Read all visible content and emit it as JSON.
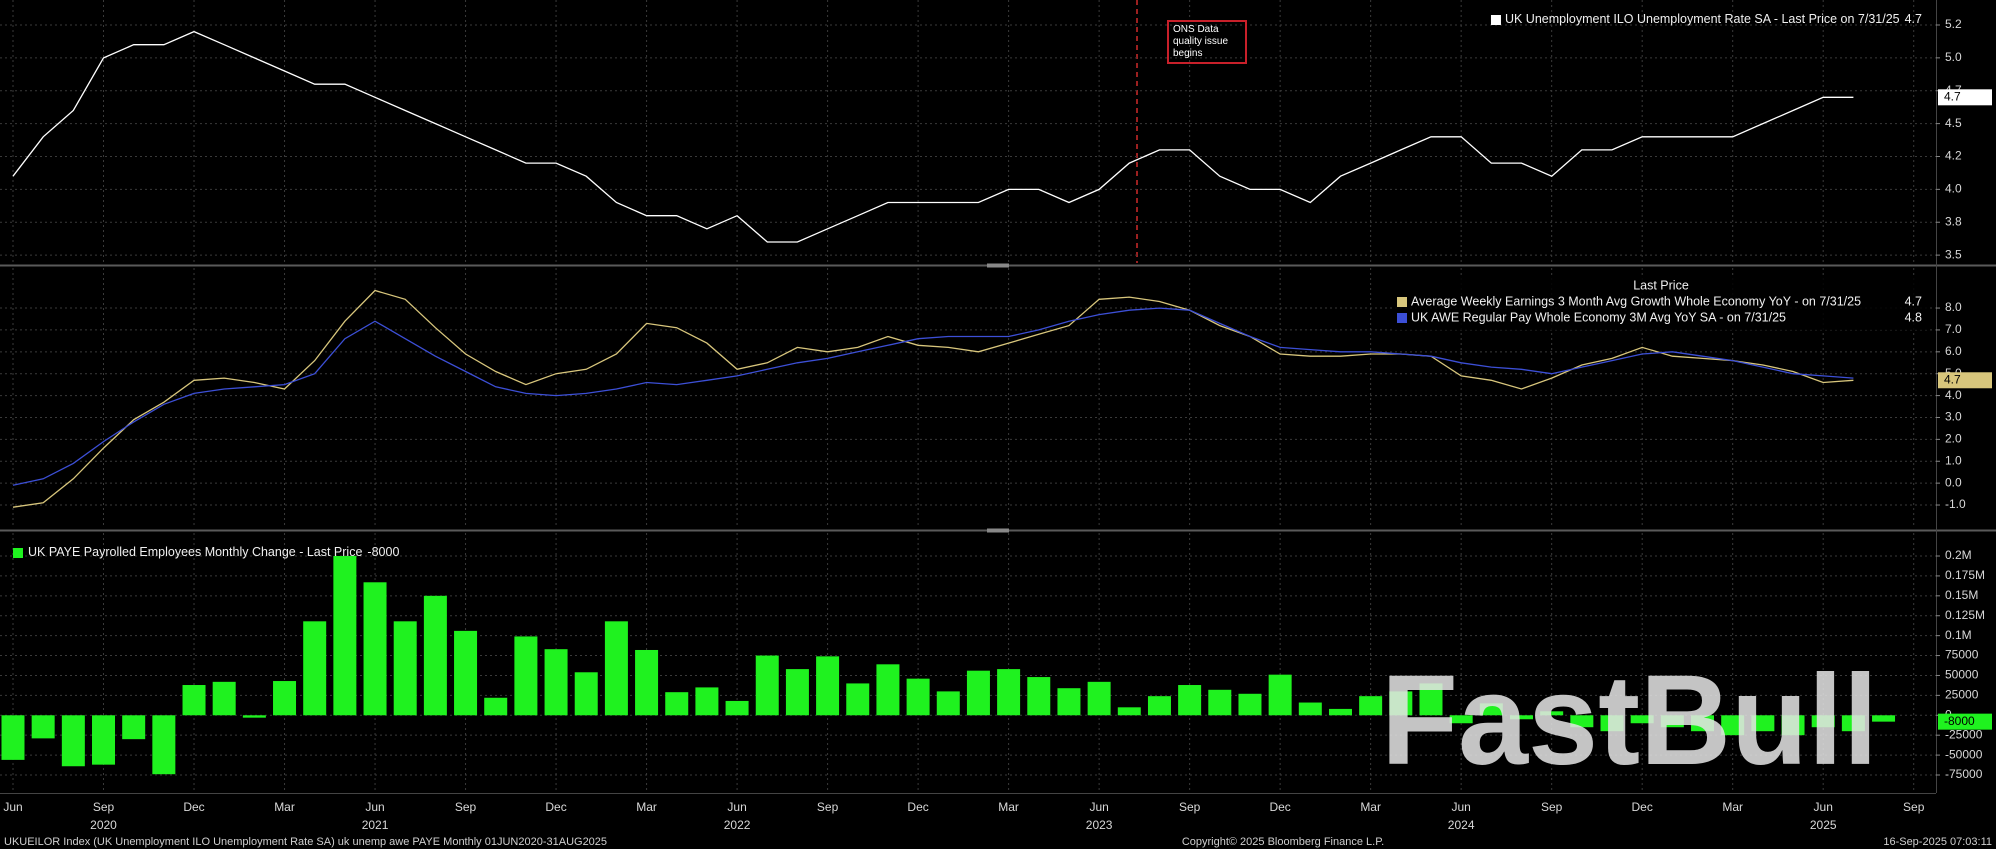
{
  "chart_data": [
    {
      "type": "line",
      "series": [
        {
          "name": "UK Unemployment ILO Unemployment Rate SA - Last Price on 7/31/25",
          "color": "#ffffff",
          "last_value_tag": true,
          "values": [
            4.1,
            4.4,
            4.6,
            5.0,
            5.1,
            5.1,
            5.2,
            5.1,
            5.0,
            4.9,
            4.8,
            4.8,
            4.7,
            4.6,
            4.5,
            4.4,
            4.3,
            4.2,
            4.2,
            4.1,
            3.9,
            3.8,
            3.8,
            3.7,
            3.8,
            3.6,
            3.6,
            3.7,
            3.8,
            3.9,
            3.9,
            3.9,
            3.9,
            4.0,
            4.0,
            3.9,
            4.0,
            4.2,
            4.3,
            4.3,
            4.1,
            4.0,
            4.0,
            3.9,
            4.1,
            4.2,
            4.3,
            4.4,
            4.4,
            4.2,
            4.2,
            4.1,
            4.3,
            4.3,
            4.4,
            4.4,
            4.4,
            4.4,
            4.5,
            4.6,
            4.7,
            4.7
          ]
        }
      ],
      "ylim": [
        3.44,
        5.44
      ],
      "yticks": [
        3.5,
        {
          "value": 3.75,
          "label": "3.8"
        },
        {
          "value": 4,
          "label": "4.0"
        },
        {
          "value": 4.25,
          "label": "4.2"
        },
        4.5,
        {
          "value": 4.75,
          "label": "4.7"
        },
        {
          "value": 5,
          "label": "5.0"
        },
        {
          "value": 5.25,
          "label": "5.2"
        }
      ],
      "grid": true,
      "legend": "top-right",
      "annotation": "ONS Data quality issue begins"
    },
    {
      "type": "line",
      "legend_title": "Last Price",
      "series": [
        {
          "name": "Average Weekly Earnings 3 Month Avg Growth Whole Economy YoY -  on 7/31/25",
          "color": "#d8c67c",
          "last_value_tag": true,
          "values": [
            -1.1,
            -0.9,
            0.2,
            1.6,
            2.9,
            3.7,
            4.7,
            4.8,
            4.6,
            4.3,
            5.6,
            7.4,
            8.8,
            8.4,
            7.1,
            5.9,
            5.1,
            4.5,
            5.0,
            5.2,
            5.9,
            7.3,
            7.1,
            6.4,
            5.2,
            5.5,
            6.2,
            6.0,
            6.2,
            6.7,
            6.3,
            6.2,
            6.0,
            6.4,
            6.8,
            7.2,
            8.4,
            8.5,
            8.3,
            7.9,
            7.2,
            6.7,
            5.9,
            5.8,
            5.8,
            5.9,
            5.9,
            5.8,
            4.9,
            4.7,
            4.3,
            4.8,
            5.4,
            5.7,
            6.2,
            5.8,
            5.7,
            5.6,
            5.4,
            5.1,
            4.6,
            4.7
          ]
        },
        {
          "name": "UK AWE Regular Pay Whole Economy 3M Avg YoY SA -  on 7/31/25",
          "color": "#3c4fd6",
          "last_value_tag": false,
          "values": [
            -0.1,
            0.2,
            0.9,
            1.9,
            2.8,
            3.6,
            4.1,
            4.3,
            4.4,
            4.5,
            5.0,
            6.6,
            7.4,
            6.6,
            5.8,
            5.1,
            4.4,
            4.1,
            4.0,
            4.1,
            4.3,
            4.6,
            4.5,
            4.7,
            4.9,
            5.2,
            5.5,
            5.7,
            6.0,
            6.3,
            6.6,
            6.7,
            6.7,
            6.7,
            7.0,
            7.4,
            7.7,
            7.9,
            8.0,
            7.9,
            7.3,
            6.7,
            6.2,
            6.1,
            6.0,
            6.0,
            5.9,
            5.8,
            5.5,
            5.3,
            5.2,
            5.0,
            5.3,
            5.6,
            5.9,
            6.0,
            5.8,
            5.6,
            5.3,
            5.0,
            4.9,
            4.8
          ]
        }
      ],
      "ylim": [
        -2.05,
        9.83
      ],
      "yticks": [
        {
          "value": -1,
          "label": "-1.0"
        },
        {
          "value": 0,
          "label": "0.0"
        },
        {
          "value": 1,
          "label": "1.0"
        },
        {
          "value": 2,
          "label": "2.0"
        },
        {
          "value": 3,
          "label": "3.0"
        },
        {
          "value": 4,
          "label": "4.0"
        },
        {
          "value": 5,
          "label": "5.0"
        },
        {
          "value": 6,
          "label": "6.0"
        },
        {
          "value": 7,
          "label": "7.0"
        },
        {
          "value": 8,
          "label": "8.0"
        }
      ],
      "grid": true,
      "legend": "top-right"
    },
    {
      "type": "bar",
      "series": [
        {
          "name": "UK PAYE Payrolled Employees Monthly Change - Last Price",
          "color": "#1ff21f",
          "last_value_tag": true,
          "values": [
            -56000,
            -29000,
            -64000,
            -62000,
            -30000,
            -74000,
            38000,
            42000,
            -3000,
            43000,
            118000,
            200000,
            167000,
            118000,
            150000,
            106000,
            22000,
            99000,
            83000,
            54000,
            118000,
            82000,
            29000,
            35000,
            18000,
            75000,
            58000,
            74000,
            40000,
            64000,
            46000,
            30000,
            56000,
            58000,
            48000,
            34000,
            42000,
            10000,
            24000,
            38000,
            32000,
            27000,
            51000,
            16000,
            8000,
            24000,
            30000,
            40000,
            -10000,
            15000,
            -5000,
            5000,
            -15000,
            -20000,
            -10000,
            -15000,
            -20000,
            -25000,
            -20000,
            -25000,
            -15000,
            -20000,
            -8000
          ]
        }
      ],
      "ylim": [
        -97600,
        228900
      ],
      "yticks": [
        -75000,
        -50000,
        -25000,
        0,
        25000,
        50000,
        75000,
        {
          "value": 100000,
          "label": "0.1M"
        },
        {
          "value": 125000,
          "label": "0.125M"
        },
        {
          "value": 150000,
          "label": "0.15M"
        },
        {
          "value": 175000,
          "label": "0.175M"
        },
        {
          "value": 200000,
          "label": "0.2M"
        }
      ],
      "grid": true,
      "legend": "top-left"
    }
  ],
  "x_axis": {
    "categories": [
      "Jun",
      null,
      null,
      "Sep",
      null,
      null,
      "Dec",
      null,
      null,
      "Mar",
      null,
      null,
      "Jun",
      null,
      null,
      "Sep",
      null,
      null,
      "Dec",
      null,
      null,
      "Mar",
      null,
      null,
      "Jun",
      null,
      null,
      "Sep",
      null,
      null,
      "Dec",
      null,
      null,
      "Mar",
      null,
      null,
      "Jun",
      null,
      null,
      "Sep",
      null,
      null,
      "Dec",
      null,
      null,
      "Mar",
      null,
      null,
      "Jun",
      null,
      null,
      "Sep",
      null,
      null,
      "Dec",
      null,
      null,
      "Mar",
      null,
      null,
      "Jun",
      null,
      null,
      "Sep"
    ],
    "years": [
      null,
      null,
      null,
      "2020",
      null,
      null,
      null,
      null,
      null,
      null,
      null,
      null,
      "2021",
      null,
      null,
      null,
      null,
      null,
      null,
      null,
      null,
      null,
      null,
      null,
      "2022",
      null,
      null,
      null,
      null,
      null,
      null,
      null,
      null,
      null,
      null,
      null,
      "2023",
      null,
      null,
      null,
      null,
      null,
      null,
      null,
      null,
      null,
      null,
      null,
      "2024",
      null,
      null,
      null,
      null,
      null,
      null,
      null,
      null,
      null,
      null,
      null,
      "2025",
      null,
      null,
      null
    ]
  },
  "watermark": "FastBull",
  "footer": {
    "left": "UKUEILOR Index (UK Unemployment ILO Unemployment Rate SA) uk unemp awe PAYE  Monthly 01JUN2020-31AUG2025",
    "center": "Copyright© 2025 Bloomberg Finance L.P.",
    "right": "16-Sep-2025 07:03:11"
  }
}
